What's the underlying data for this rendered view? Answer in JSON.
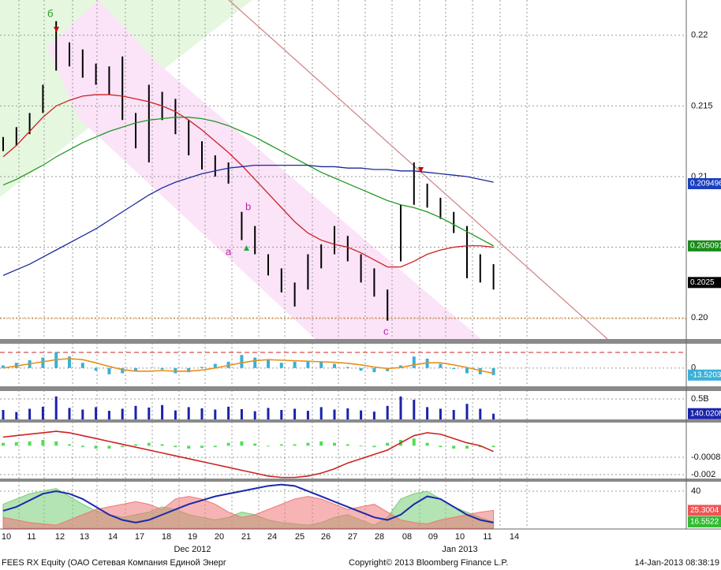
{
  "chart_data": [
    {
      "type": "ohlc",
      "color": "#000000",
      "high": [
        0.2128,
        0.2135,
        0.2145,
        0.2165,
        0.221,
        0.2195,
        0.219,
        0.218,
        0.2178,
        0.2185,
        0.2145,
        0.2165,
        0.216,
        0.2155,
        0.214,
        0.2125,
        0.2115,
        0.211,
        0.2075,
        0.2065,
        0.2045,
        0.2035,
        0.2025,
        0.2045,
        0.2052,
        0.2065,
        0.2058,
        0.2045,
        0.2035,
        0.202,
        0.208,
        0.211,
        0.2095,
        0.2085,
        0.2075,
        0.2065,
        0.2045,
        0.2038
      ],
      "low": [
        0.2118,
        0.2122,
        0.213,
        0.2145,
        0.2175,
        0.2178,
        0.217,
        0.2165,
        0.2158,
        0.214,
        0.212,
        0.211,
        0.214,
        0.213,
        0.2115,
        0.2105,
        0.21,
        0.2095,
        0.2055,
        0.2045,
        0.203,
        0.2018,
        0.2008,
        0.202,
        0.2035,
        0.2045,
        0.204,
        0.2025,
        0.2015,
        0.1998,
        0.204,
        0.208,
        0.2078,
        0.207,
        0.206,
        0.2028,
        0.2025,
        0.202
      ],
      "series": [
        {
          "color": "#cc2222",
          "values": [
            0.2114,
            0.2122,
            0.2132,
            0.2142,
            0.215,
            0.2154,
            0.2157,
            0.2158,
            0.2158,
            0.2157,
            0.2155,
            0.2153,
            0.215,
            0.2146,
            0.214,
            0.2133,
            0.2125,
            0.2117,
            0.2108,
            0.2098,
            0.2088,
            0.2078,
            0.2068,
            0.206,
            0.2055,
            0.2052,
            0.205,
            0.2046,
            0.2041,
            0.2036,
            0.2036,
            0.204,
            0.2045,
            0.2048,
            0.205,
            0.2051,
            0.2051,
            0.205
          ]
        },
        {
          "color": "#229922",
          "values": [
            0.2094,
            0.2098,
            0.2103,
            0.2108,
            0.2114,
            0.2119,
            0.2124,
            0.2128,
            0.2132,
            0.2135,
            0.2138,
            0.214,
            0.2141,
            0.2142,
            0.2142,
            0.2141,
            0.2139,
            0.2136,
            0.2132,
            0.2128,
            0.2123,
            0.2118,
            0.2113,
            0.2108,
            0.2103,
            0.2099,
            0.2095,
            0.2091,
            0.2087,
            0.2083,
            0.208,
            0.2078,
            0.2075,
            0.2071,
            0.2066,
            0.2061,
            0.2056,
            0.2051
          ]
        },
        {
          "color": "#1a2a99",
          "values": [
            0.203,
            0.2034,
            0.2038,
            0.2043,
            0.2048,
            0.2053,
            0.2058,
            0.2063,
            0.2069,
            0.2075,
            0.2081,
            0.2087,
            0.2092,
            0.2096,
            0.2099,
            0.2102,
            0.2104,
            0.2106,
            0.2107,
            0.2108,
            0.2108,
            0.2108,
            0.2108,
            0.2108,
            0.2107,
            0.2107,
            0.2106,
            0.2106,
            0.2105,
            0.2105,
            0.2104,
            0.2104,
            0.2103,
            0.2102,
            0.2101,
            0.21,
            0.2098,
            0.2096
          ]
        }
      ],
      "ylim": [
        0.1985,
        0.2225
      ],
      "yticks": [
        0.22,
        0.215,
        0.21,
        0.205,
        {
          "value": 0.2,
          "label": "0.20"
        }
      ],
      "tags": [
        {
          "value": 0.209496,
          "color": "#1a3fbf"
        },
        {
          "value": 0.205091,
          "color": "#1a8c1a"
        },
        {
          "value": 0.2025,
          "color": "#000000"
        }
      ]
    },
    {
      "type": "histogram-line",
      "color": "#3ab0d8",
      "values": [
        5,
        10,
        15,
        20,
        30,
        22,
        10,
        -5,
        -12,
        -10,
        -5,
        0,
        -3,
        -10,
        -8,
        2,
        8,
        12,
        25,
        20,
        15,
        10,
        12,
        14,
        12,
        8,
        2,
        -5,
        -8,
        -6,
        5,
        22,
        18,
        8,
        -2,
        -10,
        -12,
        -13.5203
      ],
      "line": {
        "color": "#e8901a",
        "values": [
          0,
          4,
          8,
          12,
          16,
          18,
          16,
          10,
          3,
          -3,
          -6,
          -6,
          -5,
          -6,
          -6,
          -4,
          0,
          5,
          10,
          14,
          16,
          15,
          14,
          13,
          12,
          11,
          9,
          6,
          2,
          -1,
          1,
          6,
          10,
          10,
          6,
          1,
          -5,
          -10
        ]
      },
      "ref": 30,
      "ref_color": "#cc2222",
      "ylim": [
        -35,
        45
      ],
      "yticks": [
        0
      ],
      "tags": [
        {
          "value": -13.5203,
          "color": "#3ab0d8"
        }
      ]
    },
    {
      "type": "bar",
      "color": "#1a22aa",
      "values": [
        230000000,
        180000000,
        260000000,
        310000000,
        560000000,
        280000000,
        240000000,
        300000000,
        210000000,
        260000000,
        330000000,
        290000000,
        350000000,
        220000000,
        300000000,
        270000000,
        240000000,
        310000000,
        250000000,
        200000000,
        280000000,
        230000000,
        260000000,
        210000000,
        300000000,
        240000000,
        270000000,
        220000000,
        190000000,
        330000000,
        560000000,
        480000000,
        300000000,
        260000000,
        230000000,
        380000000,
        260000000,
        140020000
      ],
      "ylim": [
        0,
        673000000
      ],
      "yticks": [
        {
          "value": 500000000,
          "label": "0.5B"
        }
      ],
      "tags": [
        {
          "value": 140020000,
          "label": "140.020M",
          "color": "#1a22aa"
        }
      ]
    },
    {
      "type": "histogram-line",
      "color": "#55dd55",
      "values": [
        0.0002,
        0.00025,
        0.0003,
        0.0004,
        0.0003,
        0.0001,
        -0.0001,
        -0.0002,
        -0.0002,
        -0.0001,
        0.0001,
        0.0002,
        0.0001,
        -0.0001,
        -0.0002,
        -0.00015,
        -0.0001,
        0.0002,
        0.0003,
        0.00015,
        -5e-05,
        0.0001,
        0.0001,
        0.0002,
        0.0003,
        0.0002,
        0.0001,
        -5e-05,
        -0.0001,
        0.0002,
        0.0004,
        0.0005,
        0.0002,
        -0.0001,
        -0.0002,
        -0.0002,
        -0.0001,
        -0.0001
      ],
      "line": {
        "color": "#cc2222",
        "values": [
          0.0006,
          0.0007,
          0.0008,
          0.0009,
          0.001,
          0.0009,
          0.0007,
          0.0005,
          0.0003,
          0.0001,
          -0.0001,
          -0.0003,
          -0.0005,
          -0.0007,
          -0.0009,
          -0.0011,
          -0.0013,
          -0.0015,
          -0.0017,
          -0.0019,
          -0.0021,
          -0.0022,
          -0.0022,
          -0.0021,
          -0.0019,
          -0.0016,
          -0.0012,
          -0.0009,
          -0.0006,
          -0.0003,
          0.0002,
          0.0007,
          0.0009,
          0.0008,
          0.0005,
          0.0002,
          0,
          -0.0004
        ]
      },
      "ylim": [
        -0.00233,
        0.00155
      ],
      "yticks": [
        -0.0008,
        -0.002
      ]
    },
    {
      "type": "dmi",
      "series": [
        {
          "color": "#77cc77",
          "values": [
            30,
            34,
            38,
            40,
            42,
            36,
            30,
            25,
            22,
            20,
            22,
            24,
            28,
            26,
            22,
            20,
            18,
            20,
            24,
            22,
            18,
            16,
            15,
            14,
            16,
            20,
            22,
            18,
            14,
            20,
            34,
            38,
            40,
            34,
            28,
            24,
            20,
            16.5522
          ]
        },
        {
          "color": "#ee7777",
          "values": [
            20,
            18,
            16,
            15,
            14,
            18,
            22,
            26,
            28,
            30,
            32,
            30,
            26,
            34,
            36,
            34,
            30,
            24,
            20,
            22,
            26,
            30,
            34,
            36,
            34,
            30,
            26,
            28,
            30,
            24,
            18,
            16,
            15,
            18,
            20,
            22,
            24,
            25.3004
          ]
        },
        {
          "color": "#1a2aaa",
          "values": [
            25,
            28,
            33,
            38,
            40,
            38,
            34,
            28,
            22,
            18,
            16,
            18,
            22,
            26,
            30,
            33,
            36,
            38,
            40,
            42,
            44,
            45,
            44,
            40,
            36,
            32,
            28,
            24,
            20,
            18,
            22,
            30,
            36,
            34,
            28,
            22,
            18,
            16
          ]
        }
      ],
      "ylim": [
        11.7,
        46.6
      ],
      "yticks": [
        40
      ],
      "tags": [
        {
          "value": 25.3004,
          "color": "#ee5555"
        },
        {
          "value": 16.5522,
          "color": "#33bb33"
        }
      ]
    }
  ],
  "time_axis": {
    "days": [
      "10",
      "11",
      "12",
      "13",
      "14",
      "17",
      "18",
      "19",
      "20",
      "21",
      "24",
      "25",
      "26",
      "27",
      "28",
      "08",
      "09",
      "10",
      "11",
      "14"
    ],
    "months": [
      "Dec 2012",
      "Jan 2013"
    ]
  },
  "annotations": [
    "б",
    "a",
    "b",
    "c"
  ],
  "footer": {
    "security": "FEES RX Equity (ОАО Сетевая Компания Единой Энерг",
    "copyright": "Copyright© 2013 Bloomberg Finance L.P.",
    "timestamp": "14-Jan-2013 08:38:19"
  }
}
